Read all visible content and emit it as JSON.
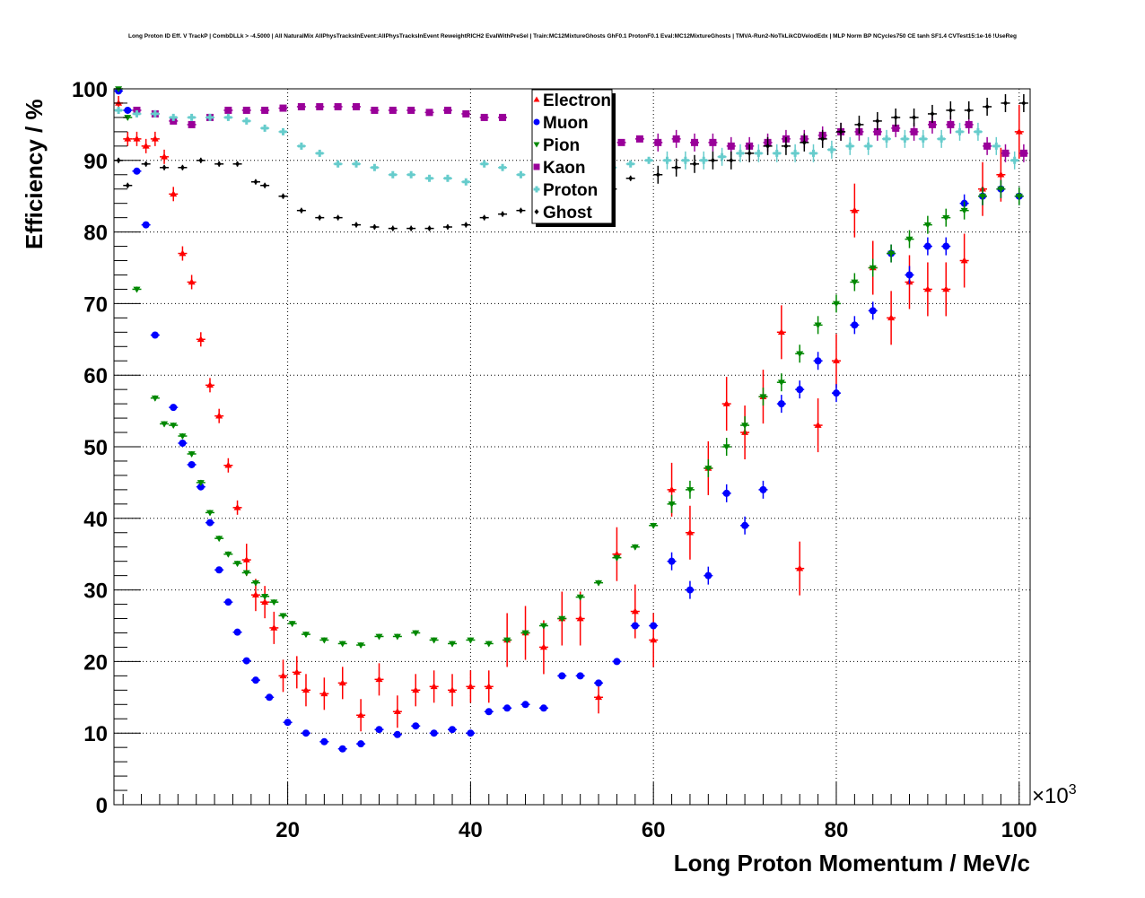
{
  "chart_data": {
    "type": "scatter",
    "title": "Long Proton ID Eff. V TrackP | CombDLLk > -4.5000 | All NaturalMix AllPhysTracksInEvent:AllPhysTracksInEvent ReweightRICH2 EvalWithPreSel | Train:MC12MixtureGhosts GhF0.1 ProtonF0.1 Eval:MC12MixtureGhosts | TMVA-Run2-NoTkLikCDVelodEdx | MLP Norm BP NCycles750 CE tanh SF1.4 CVTest15:1e-16 !UseReg",
    "xlabel": "Long Proton Momentum / MeV/c",
    "ylabel": "Efficiency / %",
    "x_multiplier": "×10",
    "x_multiplier_exp": "3",
    "xlim": [
      1,
      101.2
    ],
    "ylim": [
      0,
      100
    ],
    "xticks": [
      "20",
      "40",
      "60",
      "80",
      "100"
    ],
    "yticks": [
      "0",
      "10",
      "20",
      "30",
      "40",
      "50",
      "60",
      "70",
      "80",
      "90",
      "100"
    ],
    "grid": true,
    "legend_position": "top-center",
    "series": [
      {
        "name": "Electron",
        "color": "#ff0000",
        "marker": "triangle-up",
        "points": [
          [
            1.5,
            98
          ],
          [
            2.5,
            93
          ],
          [
            3.5,
            93
          ],
          [
            4.5,
            92
          ],
          [
            5.5,
            93
          ],
          [
            6.5,
            90.5
          ],
          [
            7.5,
            85.3
          ],
          [
            8.5,
            77
          ],
          [
            9.5,
            73
          ],
          [
            10.5,
            65
          ],
          [
            11.5,
            58.6
          ],
          [
            12.5,
            54.3
          ],
          [
            13.5,
            47.4
          ],
          [
            14.5,
            41.5
          ],
          [
            15.5,
            34.2
          ],
          [
            16.5,
            29.3
          ],
          [
            17.5,
            28.3
          ],
          [
            18.5,
            24.7
          ],
          [
            19.5,
            18
          ],
          [
            21,
            18.5
          ],
          [
            22,
            16
          ],
          [
            24,
            15.5
          ],
          [
            26,
            17
          ],
          [
            28,
            12.5
          ],
          [
            30,
            17.5
          ],
          [
            32,
            13
          ],
          [
            34,
            16
          ],
          [
            36,
            16.5
          ],
          [
            38,
            16
          ],
          [
            40,
            16.5
          ],
          [
            42,
            16.5
          ],
          [
            44,
            23
          ],
          [
            46,
            24
          ],
          [
            48,
            22
          ],
          [
            50,
            26
          ],
          [
            52,
            26
          ],
          [
            54,
            15
          ],
          [
            56,
            35
          ],
          [
            58,
            27
          ],
          [
            60,
            23
          ],
          [
            62,
            44
          ],
          [
            64,
            38
          ],
          [
            66,
            47
          ],
          [
            68,
            56
          ],
          [
            70,
            52
          ],
          [
            72,
            57
          ],
          [
            74,
            66
          ],
          [
            76,
            33
          ],
          [
            78,
            53
          ],
          [
            80,
            62
          ],
          [
            82,
            83
          ],
          [
            84,
            75
          ],
          [
            86,
            68
          ],
          [
            88,
            73
          ],
          [
            90,
            72
          ],
          [
            92,
            72
          ],
          [
            94,
            76
          ],
          [
            96,
            86
          ],
          [
            98,
            88
          ],
          [
            100,
            94
          ]
        ]
      },
      {
        "name": "Muon",
        "color": "#0000ff",
        "marker": "circle",
        "points": [
          [
            1.5,
            99.7
          ],
          [
            2.5,
            97
          ],
          [
            3.5,
            88.5
          ],
          [
            4.5,
            81
          ],
          [
            5.5,
            65.6
          ],
          [
            7.5,
            55.5
          ],
          [
            8.5,
            50.5
          ],
          [
            9.5,
            47.5
          ],
          [
            10.5,
            44.4
          ],
          [
            11.5,
            39.4
          ],
          [
            12.5,
            32.8
          ],
          [
            13.5,
            28.3
          ],
          [
            14.5,
            24.1
          ],
          [
            15.5,
            20.1
          ],
          [
            16.5,
            17.4
          ],
          [
            18,
            15
          ],
          [
            20,
            11.5
          ],
          [
            22,
            10
          ],
          [
            24,
            8.8
          ],
          [
            26,
            7.8
          ],
          [
            28,
            8.5
          ],
          [
            30,
            10.5
          ],
          [
            32,
            9.8
          ],
          [
            34,
            11
          ],
          [
            36,
            10
          ],
          [
            38,
            10.5
          ],
          [
            40,
            10
          ],
          [
            42,
            13
          ],
          [
            44,
            13.5
          ],
          [
            46,
            14
          ],
          [
            48,
            13.5
          ],
          [
            50,
            18
          ],
          [
            52,
            18
          ],
          [
            54,
            17
          ],
          [
            56,
            20
          ],
          [
            58,
            25
          ],
          [
            60,
            25
          ],
          [
            62,
            34
          ],
          [
            64,
            30
          ],
          [
            66,
            32
          ],
          [
            68,
            43.5
          ],
          [
            70,
            39
          ],
          [
            72,
            44
          ],
          [
            74,
            56
          ],
          [
            76,
            58
          ],
          [
            78,
            62
          ],
          [
            80,
            57.5
          ],
          [
            82,
            67
          ],
          [
            84,
            69
          ],
          [
            86,
            77
          ],
          [
            88,
            74
          ],
          [
            90,
            78
          ],
          [
            92,
            78
          ],
          [
            94,
            84
          ],
          [
            96,
            85
          ],
          [
            98,
            86
          ],
          [
            100,
            85
          ]
        ]
      },
      {
        "name": "Pion",
        "color": "#008800",
        "marker": "triangle-down",
        "points": [
          [
            1.5,
            100
          ],
          [
            2.5,
            96
          ],
          [
            3.5,
            72
          ],
          [
            5.5,
            56.8
          ],
          [
            6.5,
            53.2
          ],
          [
            7.5,
            53
          ],
          [
            8.5,
            51.5
          ],
          [
            9.5,
            49
          ],
          [
            10.5,
            45
          ],
          [
            11.5,
            40.8
          ],
          [
            12.5,
            37.2
          ],
          [
            13.5,
            35
          ],
          [
            14.5,
            33.7
          ],
          [
            15.5,
            32.4
          ],
          [
            16.5,
            31
          ],
          [
            17.5,
            29.1
          ],
          [
            18.5,
            28.3
          ],
          [
            19.5,
            26.4
          ],
          [
            20.5,
            25.3
          ],
          [
            22,
            23.8
          ],
          [
            24,
            23
          ],
          [
            26,
            22.5
          ],
          [
            28,
            22.3
          ],
          [
            30,
            23.5
          ],
          [
            32,
            23.5
          ],
          [
            34,
            24
          ],
          [
            36,
            23
          ],
          [
            38,
            22.5
          ],
          [
            40,
            23
          ],
          [
            42,
            22.5
          ],
          [
            44,
            23
          ],
          [
            46,
            24
          ],
          [
            48,
            25
          ],
          [
            50,
            26
          ],
          [
            52,
            29
          ],
          [
            54,
            31
          ],
          [
            56,
            34.5
          ],
          [
            58,
            36
          ],
          [
            60,
            39
          ],
          [
            62,
            42
          ],
          [
            64,
            44
          ],
          [
            66,
            47
          ],
          [
            68,
            50
          ],
          [
            70,
            53
          ],
          [
            72,
            57
          ],
          [
            74,
            59
          ],
          [
            76,
            63
          ],
          [
            78,
            67
          ],
          [
            80,
            70
          ],
          [
            82,
            73
          ],
          [
            84,
            75
          ],
          [
            86,
            77
          ],
          [
            88,
            79
          ],
          [
            90,
            81
          ],
          [
            92,
            82
          ],
          [
            94,
            83
          ],
          [
            96,
            85
          ],
          [
            98,
            86
          ],
          [
            100,
            85
          ]
        ]
      },
      {
        "name": "Kaon",
        "color": "#990099",
        "marker": "square",
        "points": [
          [
            3.5,
            97
          ],
          [
            5.5,
            96.5
          ],
          [
            7.5,
            95.5
          ],
          [
            9.5,
            95
          ],
          [
            11.5,
            96
          ],
          [
            13.5,
            97
          ],
          [
            15.5,
            97
          ],
          [
            17.5,
            97
          ],
          [
            19.5,
            97.3
          ],
          [
            21.5,
            97.5
          ],
          [
            23.5,
            97.5
          ],
          [
            25.5,
            97.5
          ],
          [
            27.5,
            97.5
          ],
          [
            29.5,
            97
          ],
          [
            31.5,
            97
          ],
          [
            33.5,
            97
          ],
          [
            35.5,
            96.7
          ],
          [
            37.5,
            97
          ],
          [
            39.5,
            96.5
          ],
          [
            41.5,
            96
          ],
          [
            43.5,
            96
          ],
          [
            56.5,
            92.5
          ],
          [
            58.5,
            93
          ],
          [
            60.5,
            92.5
          ],
          [
            62.5,
            93
          ],
          [
            64.5,
            92.5
          ],
          [
            66.5,
            92.5
          ],
          [
            68.5,
            92
          ],
          [
            70.5,
            92
          ],
          [
            72.5,
            92.5
          ],
          [
            74.5,
            93
          ],
          [
            76.5,
            93
          ],
          [
            78.5,
            93.5
          ],
          [
            80.5,
            94
          ],
          [
            82.5,
            94
          ],
          [
            84.5,
            94
          ],
          [
            86.5,
            94.5
          ],
          [
            88.5,
            94
          ],
          [
            90.5,
            95
          ],
          [
            92.5,
            95
          ],
          [
            94.5,
            95
          ],
          [
            96.5,
            92
          ],
          [
            98.5,
            91
          ],
          [
            100.5,
            91
          ]
        ]
      },
      {
        "name": "Proton",
        "color": "#66cccc",
        "marker": "cross",
        "points": [
          [
            1.5,
            97
          ],
          [
            3.5,
            96.5
          ],
          [
            5.5,
            96.5
          ],
          [
            7.5,
            96
          ],
          [
            9.5,
            96
          ],
          [
            11.5,
            96
          ],
          [
            13.5,
            96
          ],
          [
            15.5,
            95.5
          ],
          [
            17.5,
            94.5
          ],
          [
            19.5,
            94
          ],
          [
            21.5,
            92
          ],
          [
            23.5,
            91
          ],
          [
            25.5,
            89.5
          ],
          [
            27.5,
            89.5
          ],
          [
            29.5,
            89
          ],
          [
            31.5,
            88
          ],
          [
            33.5,
            88
          ],
          [
            35.5,
            87.5
          ],
          [
            37.5,
            87.5
          ],
          [
            39.5,
            87
          ],
          [
            41.5,
            89.5
          ],
          [
            43.5,
            89
          ],
          [
            45.5,
            88
          ],
          [
            47.5,
            88
          ],
          [
            55.5,
            89
          ],
          [
            57.5,
            89.5
          ],
          [
            59.5,
            90
          ],
          [
            61.5,
            90
          ],
          [
            63.5,
            90
          ],
          [
            65.5,
            90
          ],
          [
            67.5,
            90.5
          ],
          [
            69.5,
            91
          ],
          [
            71.5,
            91
          ],
          [
            73.5,
            91
          ],
          [
            75.5,
            91
          ],
          [
            77.5,
            91
          ],
          [
            79.5,
            91.5
          ],
          [
            81.5,
            92
          ],
          [
            83.5,
            92
          ],
          [
            85.5,
            93
          ],
          [
            87.5,
            93
          ],
          [
            89.5,
            93
          ],
          [
            91.5,
            93
          ],
          [
            93.5,
            94
          ],
          [
            95.5,
            94
          ],
          [
            97.5,
            92
          ],
          [
            99.5,
            90
          ]
        ]
      },
      {
        "name": "Ghost",
        "color": "#000000",
        "marker": "diamond",
        "points": [
          [
            1.5,
            90
          ],
          [
            2.5,
            86.5
          ],
          [
            4.5,
            89.5
          ],
          [
            6.5,
            89
          ],
          [
            8.5,
            89
          ],
          [
            10.5,
            90
          ],
          [
            12.5,
            89.5
          ],
          [
            14.5,
            89.5
          ],
          [
            16.5,
            87
          ],
          [
            17.5,
            86.5
          ],
          [
            19.5,
            85
          ],
          [
            21.5,
            83
          ],
          [
            23.5,
            82
          ],
          [
            25.5,
            82
          ],
          [
            27.5,
            81
          ],
          [
            29.5,
            80.7
          ],
          [
            31.5,
            80.5
          ],
          [
            33.5,
            80.5
          ],
          [
            35.5,
            80.5
          ],
          [
            37.5,
            80.7
          ],
          [
            39.5,
            81
          ],
          [
            41.5,
            82
          ],
          [
            43.5,
            82.5
          ],
          [
            45.5,
            83
          ],
          [
            48.5,
            83
          ],
          [
            50.5,
            84
          ],
          [
            53.5,
            85
          ],
          [
            55.5,
            86
          ],
          [
            57.5,
            87.5
          ],
          [
            60.5,
            88
          ],
          [
            62.5,
            89
          ],
          [
            64.5,
            89.5
          ],
          [
            66.5,
            90
          ],
          [
            68.5,
            90
          ],
          [
            70.5,
            91
          ],
          [
            72.5,
            92
          ],
          [
            74.5,
            92
          ],
          [
            76.5,
            92.5
          ],
          [
            78.5,
            93
          ],
          [
            80.5,
            94
          ],
          [
            82.5,
            95
          ],
          [
            84.5,
            95.5
          ],
          [
            86.5,
            96
          ],
          [
            88.5,
            96
          ],
          [
            90.5,
            96.5
          ],
          [
            92.5,
            97
          ],
          [
            94.5,
            97
          ],
          [
            96.5,
            97.5
          ],
          [
            98.5,
            98
          ],
          [
            100.5,
            98
          ]
        ]
      }
    ]
  }
}
